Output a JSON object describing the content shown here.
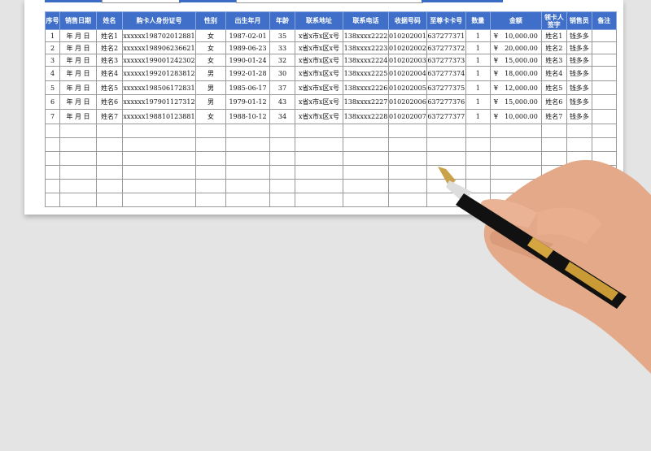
{
  "headers": [
    "序号",
    "销售日期",
    "姓名",
    "购卡人身份证号",
    "性别",
    "出生年月",
    "年龄",
    "联系地址",
    "联系电话",
    "收据号码",
    "至尊卡卡号",
    "数量",
    "金额",
    "领卡人签字",
    "销售员",
    "备注"
  ],
  "rows": [
    {
      "no": "1",
      "date": "年 月 日",
      "name": "姓名1",
      "id": "xxxxxx198702012881",
      "sex": "女",
      "birth": "1987-02-01",
      "age": "35",
      "addr": "x省x市x区x号",
      "phone": "138xxxx2222",
      "receipt": "010202001",
      "card": "637277371",
      "qty": "1",
      "cur": "¥",
      "amount": "10,000.00",
      "signer": "姓名1",
      "seller": "钱多多",
      "note": ""
    },
    {
      "no": "2",
      "date": "年 月 日",
      "name": "姓名2",
      "id": "xxxxxx198906236621",
      "sex": "女",
      "birth": "1989-06-23",
      "age": "33",
      "addr": "x省x市x区x号",
      "phone": "138xxxx2223",
      "receipt": "010202002",
      "card": "637277372",
      "qty": "1",
      "cur": "¥",
      "amount": "20,000.00",
      "signer": "姓名2",
      "seller": "钱多多",
      "note": ""
    },
    {
      "no": "3",
      "date": "年 月 日",
      "name": "姓名3",
      "id": "xxxxxx199001242302",
      "sex": "女",
      "birth": "1990-01-24",
      "age": "32",
      "addr": "x省x市x区x号",
      "phone": "138xxxx2224",
      "receipt": "010202003",
      "card": "637277373",
      "qty": "1",
      "cur": "¥",
      "amount": "15,000.00",
      "signer": "姓名3",
      "seller": "钱多多",
      "note": ""
    },
    {
      "no": "4",
      "date": "年 月 日",
      "name": "姓名4",
      "id": "xxxxxx199201283812",
      "sex": "男",
      "birth": "1992-01-28",
      "age": "30",
      "addr": "x省x市x区x号",
      "phone": "138xxxx2225",
      "receipt": "010202004",
      "card": "637277374",
      "qty": "1",
      "cur": "¥",
      "amount": "18,000.00",
      "signer": "姓名4",
      "seller": "钱多多",
      "note": ""
    },
    {
      "no": "5",
      "date": "年 月 日",
      "name": "姓名5",
      "id": "xxxxxx198506172831",
      "sex": "男",
      "birth": "1985-06-17",
      "age": "37",
      "addr": "x省x市x区x号",
      "phone": "138xxxx2226",
      "receipt": "010202005",
      "card": "637277375",
      "qty": "1",
      "cur": "¥",
      "amount": "12,000.00",
      "signer": "姓名5",
      "seller": "钱多多",
      "note": ""
    },
    {
      "no": "6",
      "date": "年 月 日",
      "name": "姓名6",
      "id": "xxxxxx197901127312",
      "sex": "男",
      "birth": "1979-01-12",
      "age": "43",
      "addr": "x省x市x区x号",
      "phone": "138xxxx2227",
      "receipt": "010202006",
      "card": "637277376",
      "qty": "1",
      "cur": "¥",
      "amount": "15,000.00",
      "signer": "姓名6",
      "seller": "钱多多",
      "note": ""
    },
    {
      "no": "7",
      "date": "年 月 日",
      "name": "姓名7",
      "id": "xxxxxx198810123881",
      "sex": "女",
      "birth": "1988-10-12",
      "age": "34",
      "addr": "x省x市x区x号",
      "phone": "138xxxx2228",
      "receipt": "010202007",
      "card": "637277377",
      "qty": "1",
      "cur": "¥",
      "amount": "10,000.00",
      "signer": "姓名7",
      "seller": "钱多多",
      "note": ""
    }
  ],
  "colors": {
    "header": "#3f6fc8",
    "background": "#e4e4e4"
  }
}
